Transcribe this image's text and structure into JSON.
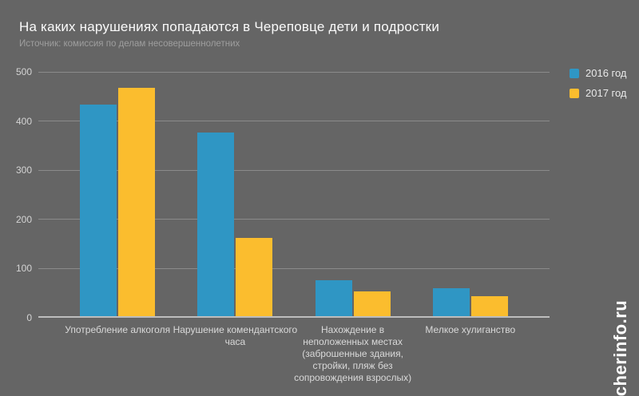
{
  "chart_data": {
    "type": "bar",
    "title": "На каких нарушениях попадаются в Череповце дети и подростки",
    "subtitle": "Источник: комиссия по делам несовершеннолетних",
    "categories": [
      "Употребление алкоголя",
      "Нарушение комендантского часа",
      "Нахождение в неположенных местах (заброшенные здания, стройки, пляж без сопровождения взрослых)",
      "Мелкое хулиганство"
    ],
    "category_lines": [
      [
        "Употребление алкоголя"
      ],
      [
        "Нарушение комендантского",
        "часа"
      ],
      [
        "Нахождение в",
        "неположенных местах",
        "(заброшенные здания,",
        "стройки, пляж без",
        "сопровождения взрослых)"
      ],
      [
        "Мелкое хулиганство"
      ]
    ],
    "series": [
      {
        "name": "2016 год",
        "color": "#2f96c4",
        "values": [
          433,
          377,
          76,
          60
        ]
      },
      {
        "name": "2017 год",
        "color": "#fbbd2e",
        "values": [
          468,
          162,
          53,
          44
        ]
      }
    ],
    "xlabel": "",
    "ylabel": "",
    "ylim": [
      0,
      500
    ],
    "yticks": [
      0,
      100,
      200,
      300,
      400,
      500
    ],
    "grid": true,
    "legend_position": "right-top"
  },
  "watermark": {
    "text": "cherinfo.ru"
  },
  "colors": {
    "background": "#656565",
    "title": "#fafafa",
    "subtitle": "#9e9e9e",
    "axis_label": "#d9d9d9",
    "gridline": "#8b8b8b",
    "baseline": "#bdbdbd",
    "series_2016": "#2f96c4",
    "series_2017": "#fbbd2e"
  }
}
